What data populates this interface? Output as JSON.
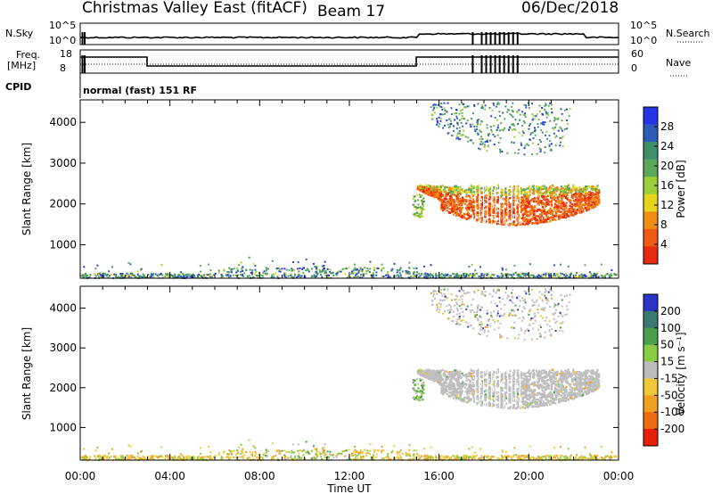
{
  "header": {
    "title": "Christmas Valley East (fitACF)",
    "beam": "Beam 17",
    "date": "06/Dec/2018"
  },
  "params": {
    "nsky_label": "N.Sky",
    "nsearch_label": "N.Search",
    "freq_label_1": "Freq.",
    "freq_label_2": "[MHz]",
    "nave_label": "Nave",
    "cpid_label": "CPID",
    "cpid_value": "normal (fast) 151 RF",
    "nsky_ticks": [
      "10^5",
      "10^0"
    ],
    "nsearch_ticks": [
      "10^5",
      "10^0"
    ],
    "freq_ticks": [
      "18",
      "8"
    ],
    "nave_ticks": [
      "60",
      "0"
    ]
  },
  "colors": {
    "power_scale": [
      "#2633e6",
      "#2e5cb8",
      "#3f8f6a",
      "#5aa85a",
      "#9ccf3a",
      "#e6d51a",
      "#f08c14",
      "#f05a14",
      "#e62a0f"
    ],
    "velocity_scale": [
      "#2a35c8",
      "#3a7a70",
      "#4aa04a",
      "#88cc44",
      "#bcbcbc",
      "#eec83a",
      "#f0a020",
      "#f06a10",
      "#e61e0a"
    ],
    "ground_scatter": "#bebebe"
  },
  "chart_data": [
    {
      "type": "heatmap",
      "panel": "power",
      "ylabel": "Slant Range [km]",
      "xlabel": "",
      "ylim": [
        180,
        4550
      ],
      "xlim": [
        0,
        24
      ],
      "yticks": [
        "4000",
        "3000",
        "2000",
        "1000"
      ],
      "xticks": [
        "00:00",
        "04:00",
        "08:00",
        "12:00",
        "16:00",
        "20:00",
        "00:00"
      ],
      "colorbar_label": "Power [dB]",
      "colorbar_ticks": [
        "28",
        "24",
        "20",
        "16",
        "12",
        "8",
        "4"
      ],
      "colorbar_range": [
        0,
        30
      ]
    },
    {
      "type": "heatmap",
      "panel": "velocity",
      "ylabel": "Slant Range [km]",
      "xlabel": "Time UT",
      "ylim": [
        180,
        4550
      ],
      "xlim": [
        0,
        24
      ],
      "yticks": [
        "4000",
        "3000",
        "2000",
        "1000"
      ],
      "xticks": [
        "00:00",
        "04:00",
        "08:00",
        "12:00",
        "16:00",
        "20:00",
        "00:00"
      ],
      "colorbar_label": "Velocity [m s⁻¹]",
      "colorbar_ticks": [
        "200",
        "100",
        "50",
        "15",
        "-15",
        "-50",
        "-100",
        "-200"
      ],
      "colorbar_range": [
        -250,
        250
      ]
    }
  ]
}
